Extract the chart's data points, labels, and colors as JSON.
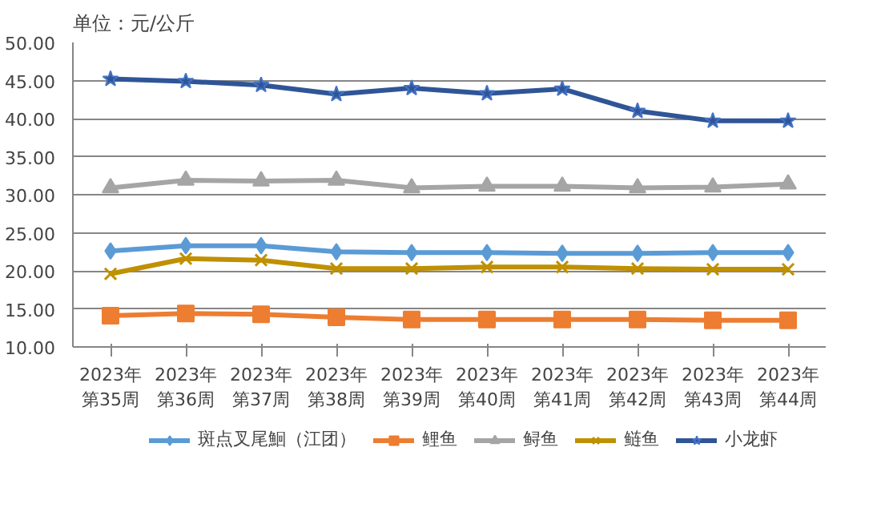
{
  "chart_data": {
    "type": "line",
    "title": "单位：元/公斤",
    "categories": [
      "2023年第35周",
      "2023年第36周",
      "2023年第37周",
      "2023年第38周",
      "2023年第39周",
      "2023年第40周",
      "2023年第41周",
      "2023年第42周",
      "2023年第43周",
      "2023年第44周"
    ],
    "series": [
      {
        "name": "斑点叉尾鮰（江团）",
        "color": "#5b9bd5",
        "marker": "diamond",
        "values": [
          22.6,
          23.3,
          23.3,
          22.5,
          22.4,
          22.4,
          22.3,
          22.3,
          22.4,
          22.4
        ]
      },
      {
        "name": "鲤鱼",
        "color": "#ed7d31",
        "marker": "square",
        "values": [
          14.1,
          14.4,
          14.3,
          13.9,
          13.6,
          13.6,
          13.6,
          13.6,
          13.5,
          13.5
        ]
      },
      {
        "name": "鲟鱼",
        "color": "#a5a5a5",
        "marker": "triangle",
        "values": [
          30.9,
          31.9,
          31.8,
          31.9,
          30.9,
          31.1,
          31.1,
          30.9,
          31.0,
          31.4
        ]
      },
      {
        "name": "鲢鱼",
        "color": "#bf9000",
        "marker": "cross",
        "values": [
          19.6,
          21.6,
          21.4,
          20.3,
          20.3,
          20.5,
          20.5,
          20.3,
          20.2,
          20.2
        ]
      },
      {
        "name": "小龙虾",
        "color": "#2f5597",
        "marker": "star",
        "values": [
          45.2,
          44.9,
          44.4,
          43.2,
          44.0,
          43.3,
          43.9,
          41.0,
          39.7,
          39.7
        ]
      }
    ],
    "ylim": [
      10,
      50
    ],
    "yticks": [
      {
        "value": 10,
        "label": "10.00"
      },
      {
        "value": 15,
        "label": "15.00"
      },
      {
        "value": 20,
        "label": "20.00"
      },
      {
        "value": 25,
        "label": "25.00"
      },
      {
        "value": 30,
        "label": "30.00"
      },
      {
        "value": 35,
        "label": "35.00"
      },
      {
        "value": 40,
        "label": "40.00"
      },
      {
        "value": 45,
        "label": "45.00"
      },
      {
        "value": 50,
        "label": "50.00"
      }
    ],
    "grid": "y",
    "legend": "bottom"
  }
}
